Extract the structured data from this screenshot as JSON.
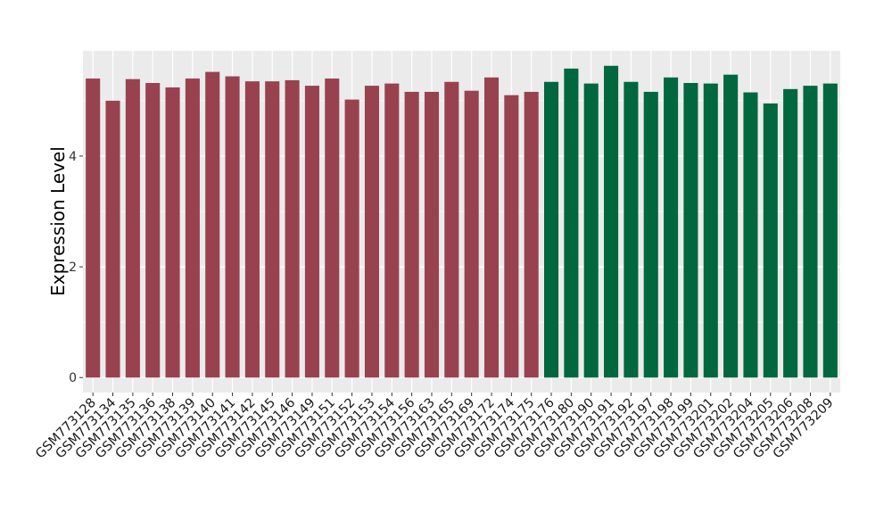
{
  "chart_data": {
    "type": "bar",
    "title": "",
    "xlabel": "",
    "ylabel": "Expression Level",
    "ylim": [
      -0.27,
      5.9
    ],
    "yticks": [
      0,
      2,
      4
    ],
    "grid": true,
    "legend": "none",
    "panel_background": "#EBEBEB",
    "categories": [
      "GSM773128",
      "GSM773134",
      "GSM773135",
      "GSM773136",
      "GSM773138",
      "GSM773139",
      "GSM773140",
      "GSM773141",
      "GSM773142",
      "GSM773145",
      "GSM773146",
      "GSM773149",
      "GSM773151",
      "GSM773152",
      "GSM773153",
      "GSM773154",
      "GSM773156",
      "GSM773163",
      "GSM773165",
      "GSM773169",
      "GSM773172",
      "GSM773174",
      "GSM773175",
      "GSM773176",
      "GSM773180",
      "GSM773190",
      "GSM773191",
      "GSM773192",
      "GSM773197",
      "GSM773198",
      "GSM773199",
      "GSM773201",
      "GSM773202",
      "GSM773204",
      "GSM773205",
      "GSM773206",
      "GSM773208",
      "GSM773209"
    ],
    "values": [
      5.4,
      5.0,
      5.39,
      5.32,
      5.24,
      5.4,
      5.52,
      5.44,
      5.35,
      5.35,
      5.37,
      5.27,
      5.4,
      5.02,
      5.27,
      5.31,
      5.16,
      5.16,
      5.34,
      5.18,
      5.42,
      5.1,
      5.16,
      5.34,
      5.58,
      5.31,
      5.63,
      5.34,
      5.16,
      5.42,
      5.32,
      5.31,
      5.47,
      5.15,
      4.95,
      5.21,
      5.27,
      5.31
    ],
    "groups": [
      0,
      0,
      0,
      0,
      0,
      0,
      0,
      0,
      0,
      0,
      0,
      0,
      0,
      0,
      0,
      0,
      0,
      0,
      0,
      0,
      0,
      0,
      0,
      1,
      1,
      1,
      1,
      1,
      1,
      1,
      1,
      1,
      1,
      1,
      1,
      1,
      1,
      1
    ],
    "group_colors": [
      "#99424F",
      "#00673F"
    ]
  }
}
